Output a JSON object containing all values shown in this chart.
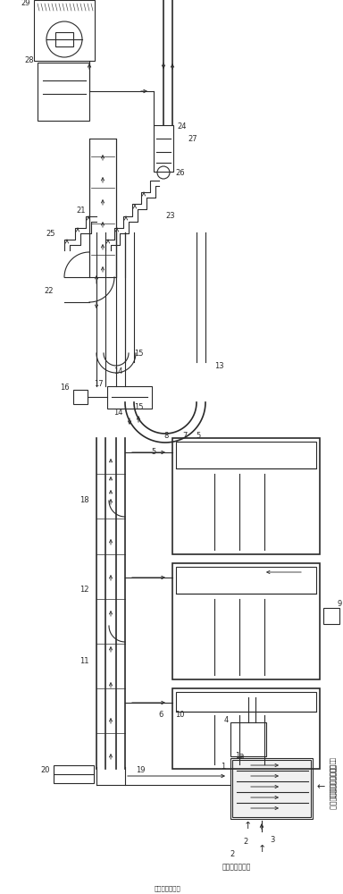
{
  "bg_color": "#ffffff",
  "line_color": "#2a2a2a",
  "figsize": [
    3.84,
    10.0
  ],
  "dpi": 100,
  "label_left": "接鱿鱼船加工线",
  "label_right": "接超全自动磷虾分配系统",
  "note_arrow": "←"
}
